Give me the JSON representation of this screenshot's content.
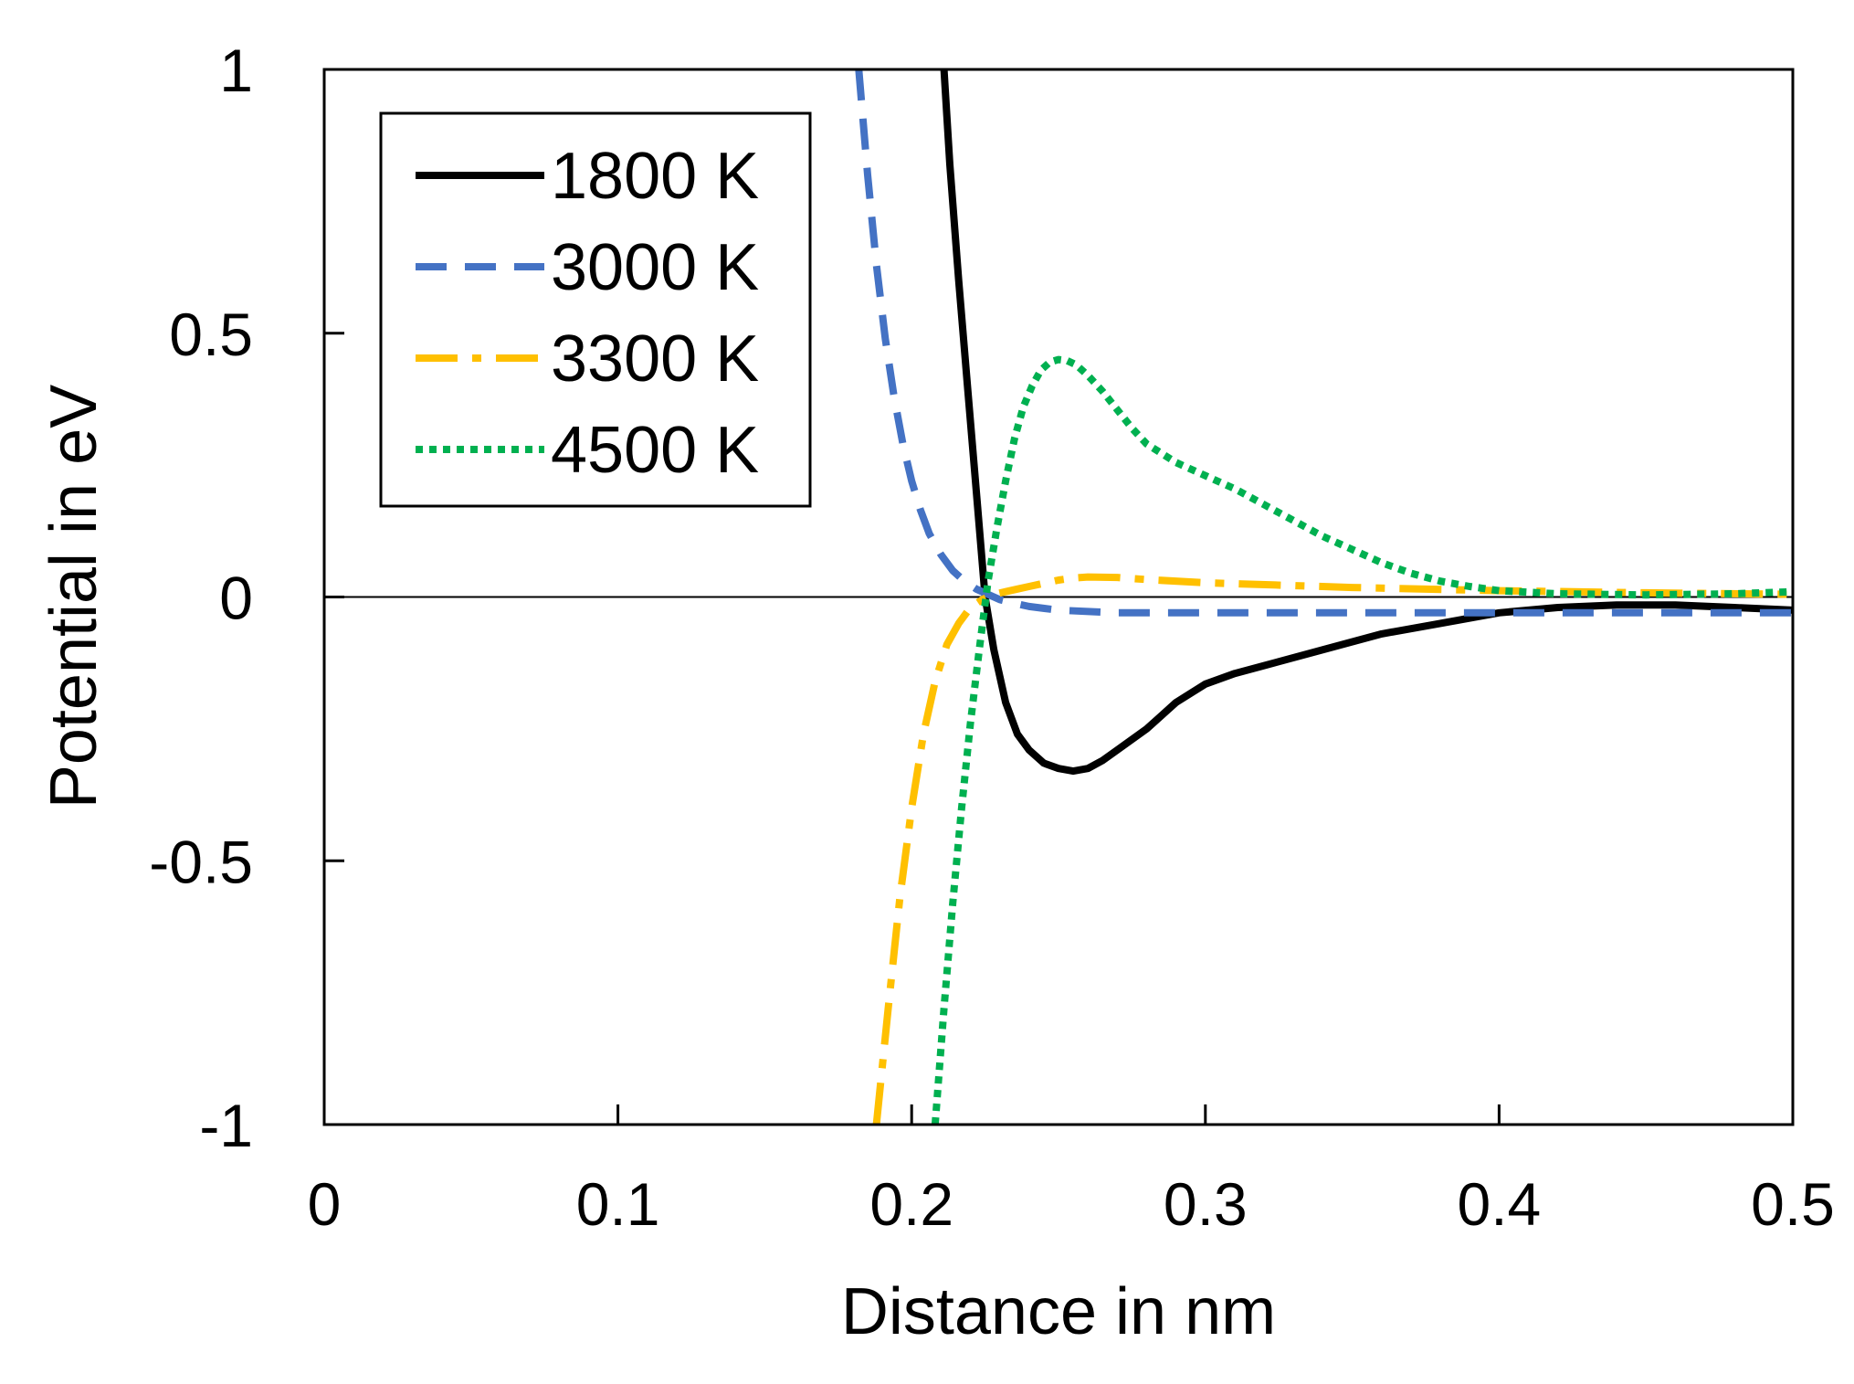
{
  "chart_data": {
    "type": "line",
    "title": "",
    "xlabel": "Distance in nm",
    "ylabel": "Potential in eV",
    "xlim": [
      0,
      0.5
    ],
    "ylim": [
      -1,
      1
    ],
    "x_ticks": [
      0,
      0.1,
      0.2,
      0.3,
      0.4,
      0.5
    ],
    "x_tick_labels": [
      "0",
      "0.1",
      "0.2",
      "0.3",
      "0.4",
      "0.5"
    ],
    "y_ticks": [
      -1,
      -0.5,
      0,
      0.5,
      1
    ],
    "y_tick_labels": [
      "-1",
      "-0.5",
      "0",
      "0.5",
      "1"
    ],
    "zero_line": true,
    "grid": false,
    "legend_position": "top-left",
    "series": [
      {
        "name": "1800 K",
        "color": "#000000",
        "style": "solid",
        "x": [
          0.211,
          0.213,
          0.216,
          0.219,
          0.222,
          0.225,
          0.228,
          0.232,
          0.236,
          0.24,
          0.245,
          0.25,
          0.255,
          0.26,
          0.265,
          0.27,
          0.28,
          0.29,
          0.3,
          0.31,
          0.32,
          0.34,
          0.36,
          0.38,
          0.4,
          0.42,
          0.44,
          0.46,
          0.48,
          0.5
        ],
        "y": [
          1.0,
          0.82,
          0.6,
          0.4,
          0.2,
          0.0,
          -0.1,
          -0.2,
          -0.26,
          -0.29,
          -0.315,
          -0.325,
          -0.33,
          -0.325,
          -0.31,
          -0.29,
          -0.25,
          -0.2,
          -0.165,
          -0.145,
          -0.13,
          -0.1,
          -0.07,
          -0.05,
          -0.03,
          -0.02,
          -0.015,
          -0.015,
          -0.02,
          -0.025
        ]
      },
      {
        "name": "3000 K",
        "color": "#4472C4",
        "style": "dashed",
        "x": [
          0.182,
          0.185,
          0.188,
          0.191,
          0.194,
          0.197,
          0.2,
          0.203,
          0.206,
          0.21,
          0.214,
          0.218,
          0.222,
          0.226,
          0.23,
          0.235,
          0.24,
          0.25,
          0.27,
          0.3,
          0.35,
          0.4,
          0.45,
          0.5
        ],
        "y": [
          1.0,
          0.8,
          0.63,
          0.49,
          0.38,
          0.29,
          0.22,
          0.165,
          0.12,
          0.08,
          0.05,
          0.03,
          0.015,
          0.005,
          -0.005,
          -0.012,
          -0.018,
          -0.025,
          -0.03,
          -0.03,
          -0.03,
          -0.03,
          -0.03,
          -0.03
        ]
      },
      {
        "name": "3300 K",
        "color": "#FFC000",
        "style": "dashdot",
        "x": [
          0.188,
          0.192,
          0.196,
          0.2,
          0.204,
          0.208,
          0.212,
          0.216,
          0.22,
          0.224,
          0.228,
          0.232,
          0.236,
          0.24,
          0.245,
          0.25,
          0.255,
          0.26,
          0.27,
          0.28,
          0.3,
          0.35,
          0.4,
          0.45,
          0.5
        ],
        "y": [
          -1.0,
          -0.78,
          -0.57,
          -0.4,
          -0.26,
          -0.16,
          -0.09,
          -0.05,
          -0.02,
          -0.005,
          0.005,
          0.01,
          0.015,
          0.02,
          0.026,
          0.032,
          0.036,
          0.038,
          0.037,
          0.033,
          0.027,
          0.018,
          0.012,
          0.008,
          0.005
        ]
      },
      {
        "name": "4500 K",
        "color": "#00B050",
        "style": "dotted",
        "x": [
          0.208,
          0.211,
          0.214,
          0.217,
          0.22,
          0.223,
          0.226,
          0.229,
          0.232,
          0.235,
          0.238,
          0.241,
          0.244,
          0.247,
          0.25,
          0.253,
          0.256,
          0.26,
          0.265,
          0.27,
          0.275,
          0.28,
          0.29,
          0.3,
          0.31,
          0.32,
          0.33,
          0.34,
          0.35,
          0.36,
          0.37,
          0.38,
          0.39,
          0.4,
          0.42,
          0.45,
          0.48,
          0.5
        ],
        "y": [
          -1.0,
          -0.78,
          -0.58,
          -0.4,
          -0.24,
          -0.1,
          0.03,
          0.13,
          0.22,
          0.3,
          0.36,
          0.4,
          0.43,
          0.445,
          0.45,
          0.448,
          0.44,
          0.42,
          0.39,
          0.355,
          0.32,
          0.29,
          0.255,
          0.23,
          0.205,
          0.175,
          0.145,
          0.115,
          0.09,
          0.065,
          0.045,
          0.03,
          0.02,
          0.012,
          0.006,
          0.004,
          0.006,
          0.01
        ]
      }
    ]
  }
}
